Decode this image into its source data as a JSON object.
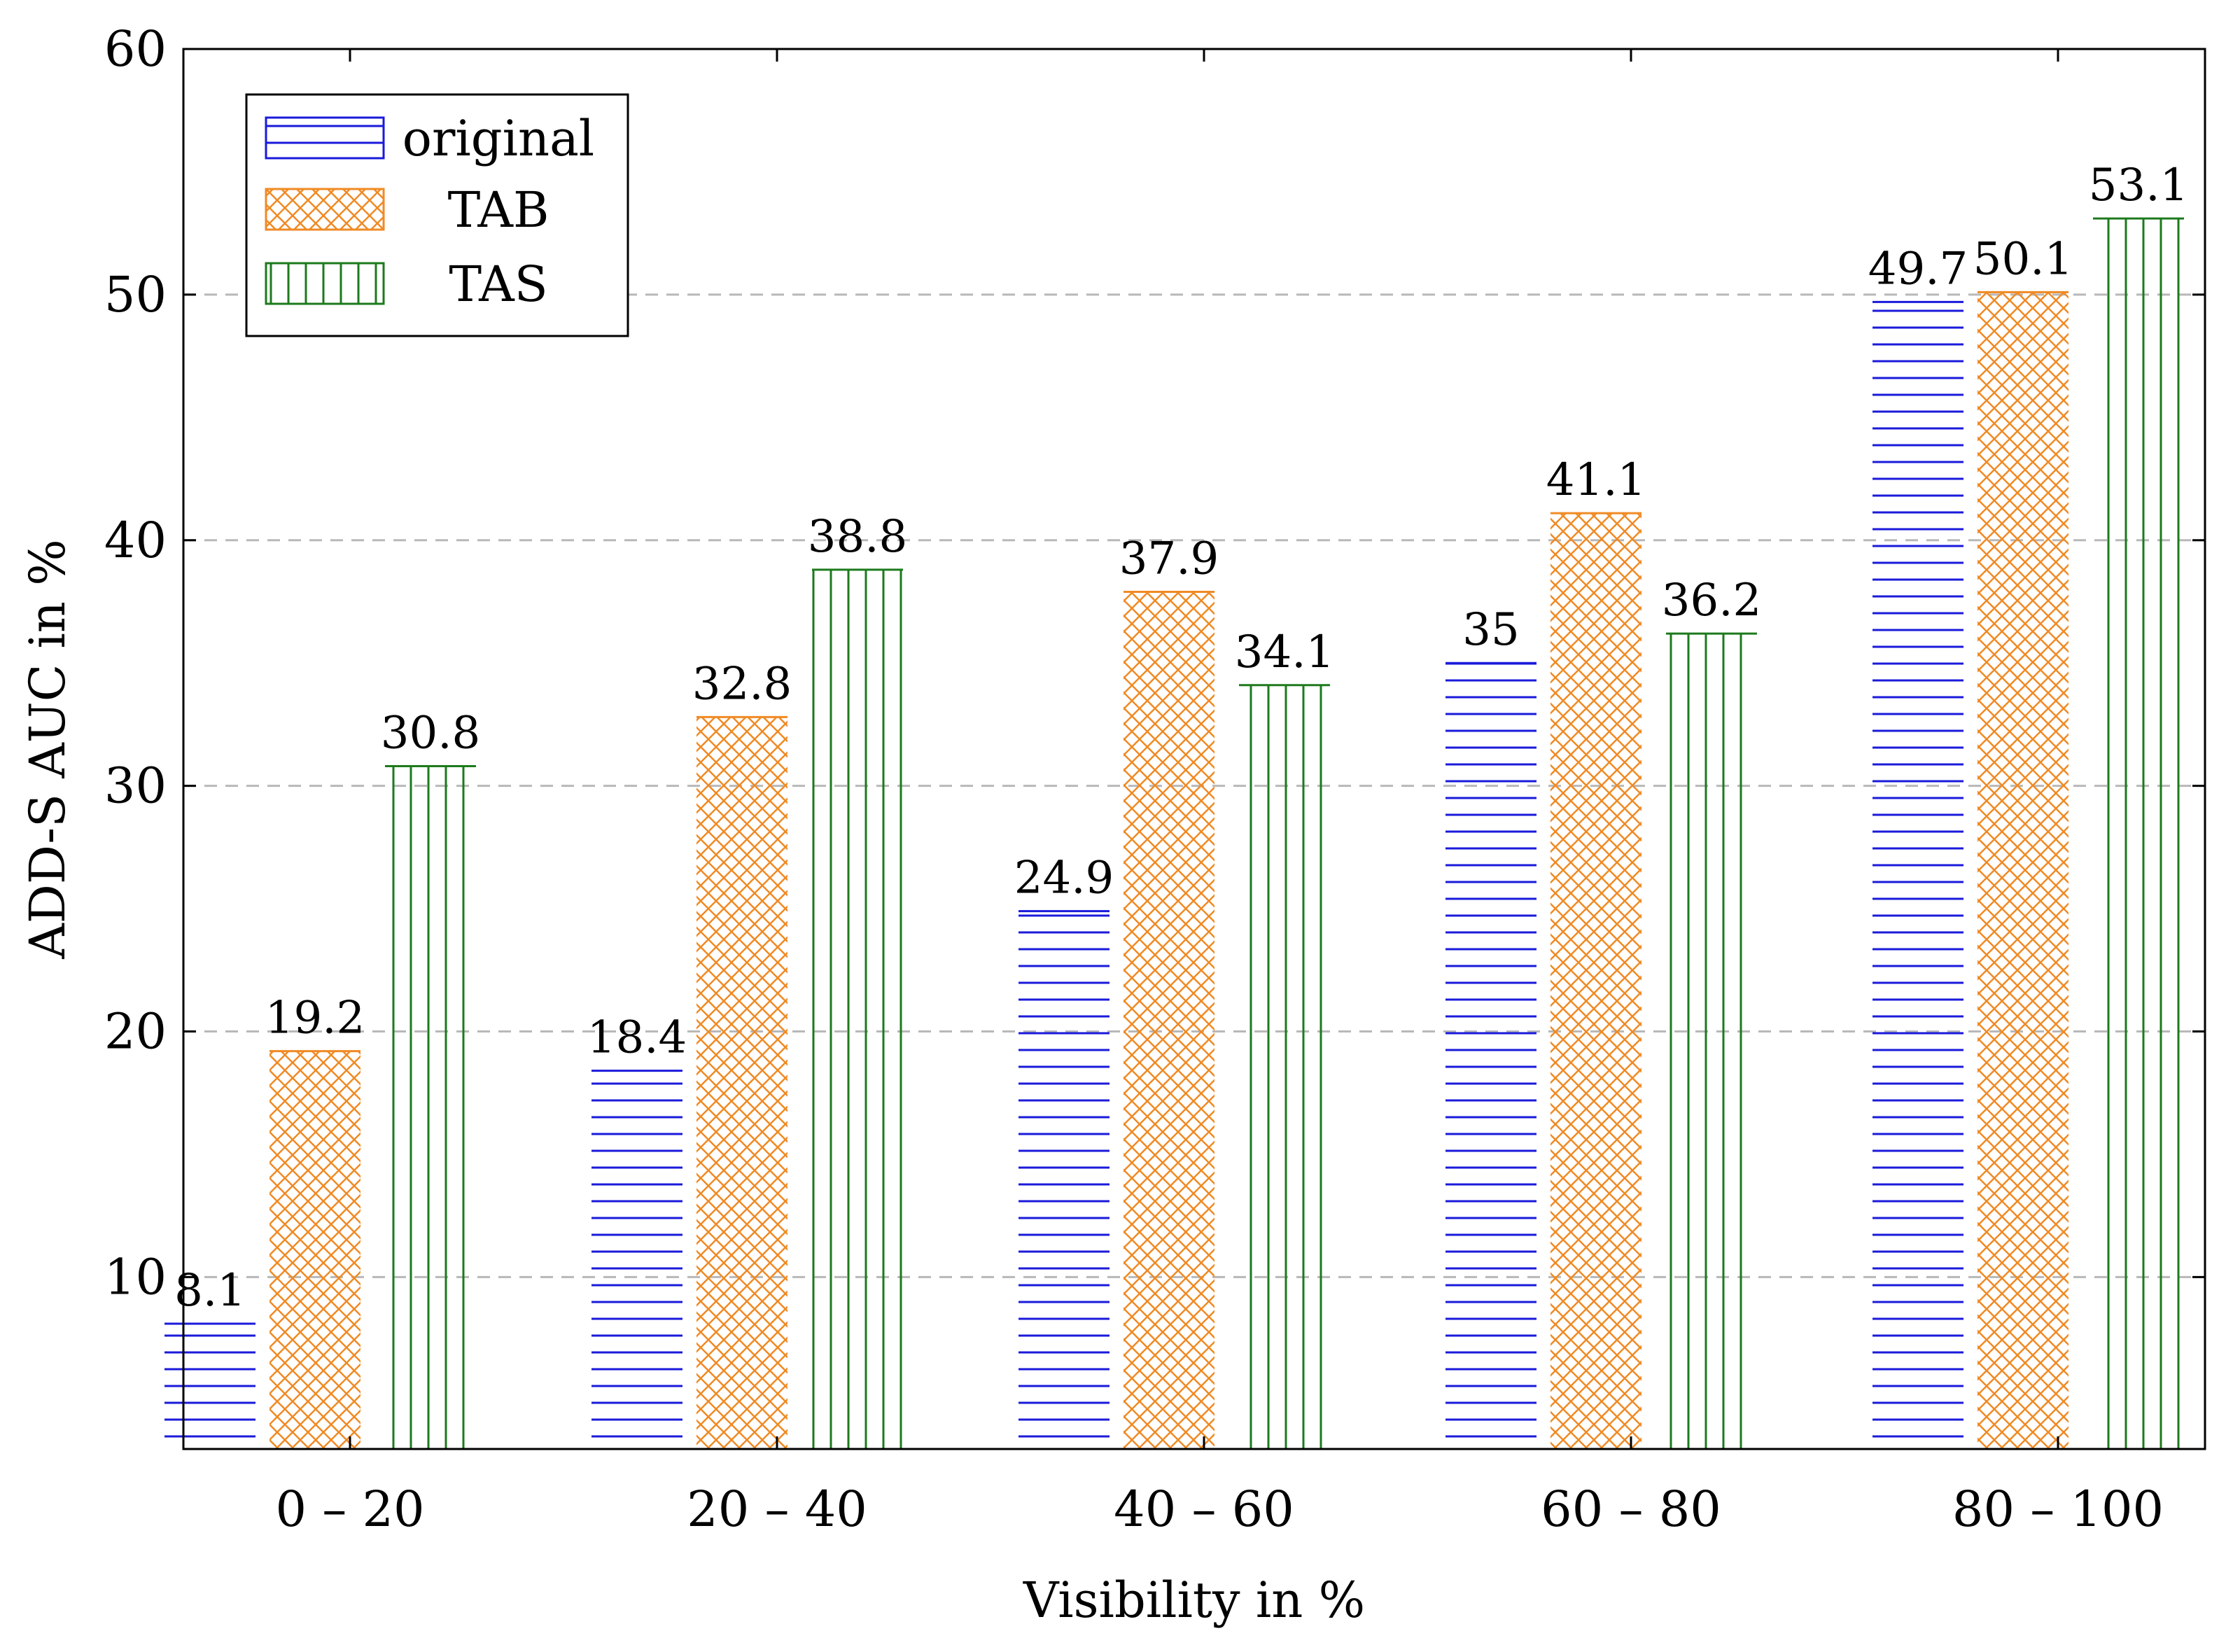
{
  "chart_data": {
    "type": "bar",
    "title": "",
    "xlabel": "Visibility in %",
    "ylabel": "ADD-S AUC in %",
    "categories": [
      "0 – 20",
      "20 – 40",
      "40 – 60",
      "60 – 80",
      "80 – 100"
    ],
    "ylim": [
      3,
      60
    ],
    "yticks": [
      10,
      20,
      30,
      40,
      50,
      60
    ],
    "grid": "horizontal dashed",
    "legend_position": "top-left",
    "series": [
      {
        "name": "original",
        "values": [
          8.1,
          18.4,
          24.9,
          35,
          49.7
        ],
        "labels": [
          "8.1",
          "18.4",
          "24.9",
          "35",
          "49.7"
        ],
        "color": "#1a1adb",
        "pattern": "horizontal-lines"
      },
      {
        "name": "TAB",
        "values": [
          19.2,
          32.8,
          37.9,
          41.1,
          50.1
        ],
        "labels": [
          "19.2",
          "32.8",
          "37.9",
          "41.1",
          "50.1"
        ],
        "color": "#f08a24",
        "pattern": "crosshatch"
      },
      {
        "name": "TAS",
        "values": [
          30.8,
          38.8,
          34.1,
          36.2,
          53.1
        ],
        "labels": [
          "30.8",
          "38.8",
          "34.1",
          "36.2",
          "53.1"
        ],
        "color": "#1c7a1c",
        "pattern": "vertical-lines"
      }
    ]
  }
}
